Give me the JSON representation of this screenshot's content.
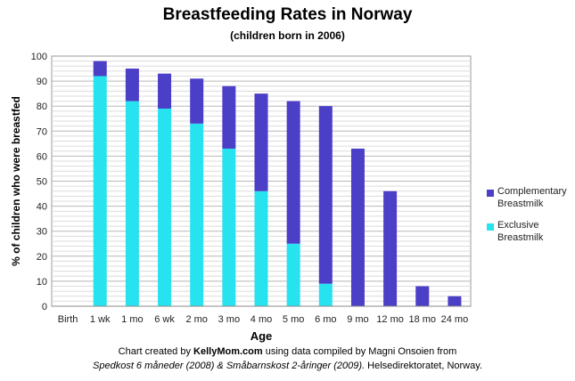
{
  "chart_data": {
    "type": "bar",
    "stacked": true,
    "title": "Breastfeeding Rates in Norway",
    "subtitle": "(children born in 2006)",
    "xlabel": "Age",
    "ylabel": "% of children who were breastfed",
    "ylim": [
      0,
      100
    ],
    "yticks": [
      "0",
      "10",
      "20",
      "30",
      "40",
      "50",
      "60",
      "70",
      "80",
      "90",
      "100"
    ],
    "grid": true,
    "legend_position": "right",
    "categories": [
      "Birth",
      "1 wk",
      "1 mo",
      "6 wk",
      "2 mo",
      "3 mo",
      "4 mo",
      "5 mo",
      "6 mo",
      "9 mo",
      "12 mo",
      "18 mo",
      "24 mo"
    ],
    "series": [
      {
        "name": "Exclusive Breastmilk",
        "legend_lines": [
          "Exclusive",
          "Breastmilk"
        ],
        "color": "#27e3ef",
        "values": [
          0,
          92,
          82,
          79,
          73,
          63,
          46,
          25,
          9,
          0,
          0,
          0,
          0
        ]
      },
      {
        "name": "Complementary Breastmilk",
        "legend_lines": [
          "Complementary",
          "Breastmilk"
        ],
        "color": "#4b3ec7",
        "values": [
          0,
          6,
          13,
          14,
          18,
          25,
          39,
          57,
          71,
          63,
          46,
          8,
          4
        ]
      }
    ]
  },
  "credit": {
    "line1_prefix": "Chart created by ",
    "line1_site": "KellyMom.com",
    "line1_suffix": " using data  compiled by Magni Onsoien from",
    "line2_source": "Spedkost 6 måneder (2008) & Småbarnskost 2-åringer (2009).",
    "line2_publisher": " Helsedirektoratet, Norway."
  }
}
